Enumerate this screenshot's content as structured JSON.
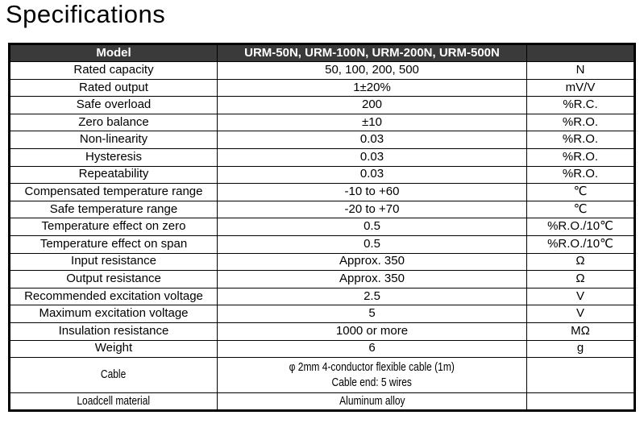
{
  "page": {
    "title": "Specifications"
  },
  "colors": {
    "header_bg": "#3a3a3a",
    "header_text": "#ffffff",
    "border": "#000000",
    "body_text": "#000000",
    "background": "#ffffff"
  },
  "table": {
    "header": {
      "model_label": "Model",
      "models": "URM-50N, URM-100N, URM-200N, URM-500N",
      "unit_label": ""
    },
    "rows": [
      {
        "item": "Rated capacity",
        "value": "50, 100, 200, 500",
        "unit": "N"
      },
      {
        "item": "Rated output",
        "value": "1±20%",
        "unit": "mV/V"
      },
      {
        "item": "Safe overload",
        "value": "200",
        "unit": "%R.C."
      },
      {
        "item": "Zero balance",
        "value": "±10",
        "unit": "%R.O."
      },
      {
        "item": "Non-linearity",
        "value": "0.03",
        "unit": "%R.O."
      },
      {
        "item": "Hysteresis",
        "value": "0.03",
        "unit": "%R.O."
      },
      {
        "item": "Repeatability",
        "value": "0.03",
        "unit": "%R.O."
      },
      {
        "item": "Compensated temperature range",
        "value": "-10 to +60",
        "unit": "℃"
      },
      {
        "item": "Safe temperature range",
        "value": "-20 to +70",
        "unit": "℃"
      },
      {
        "item": "Temperature effect on zero",
        "value": "0.5",
        "unit": "%R.O./10℃"
      },
      {
        "item": "Temperature effect on span",
        "value": "0.5",
        "unit": "%R.O./10℃"
      },
      {
        "item": "Input resistance",
        "value": "Approx. 350",
        "unit": "Ω"
      },
      {
        "item": "Output resistance",
        "value": "Approx. 350",
        "unit": "Ω"
      },
      {
        "item": "Recommended excitation voltage",
        "value": "2.5",
        "unit": "V"
      },
      {
        "item": "Maximum excitation voltage",
        "value": "5",
        "unit": "V"
      },
      {
        "item": "Insulation resistance",
        "value": "1000 or more",
        "unit": "MΩ"
      },
      {
        "item": "Weight",
        "value": "6",
        "unit": "g"
      },
      {
        "item": "Cable",
        "value": "φ 2mm 4-conductor flexible cable (1m)\nCable end: 5 wires",
        "unit": "",
        "condensed": true,
        "tall": true
      },
      {
        "item": "Loadcell material",
        "value": "Aluminum alloy",
        "unit": "",
        "condensed": true
      }
    ]
  }
}
